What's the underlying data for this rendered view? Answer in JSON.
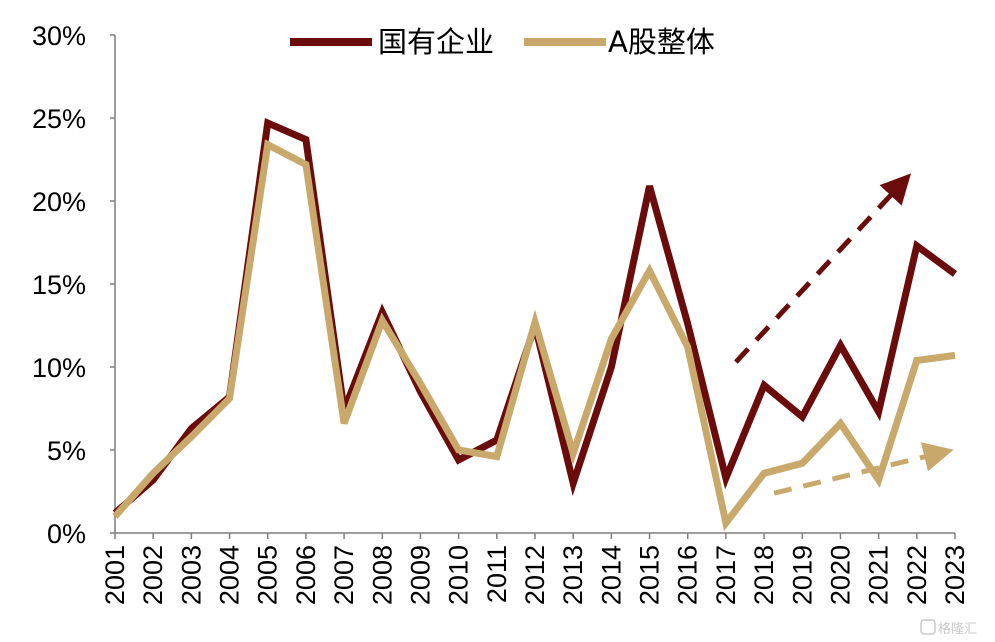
{
  "chart_data": {
    "type": "line",
    "x": [
      "2001",
      "2002",
      "2003",
      "2004",
      "2005",
      "2006",
      "2007",
      "2008",
      "2009",
      "2010",
      "2011",
      "2012",
      "2013",
      "2014",
      "2015",
      "2016",
      "2017",
      "2018",
      "2019",
      "2020",
      "2021",
      "2022",
      "2023"
    ],
    "series": [
      {
        "name": "国有企业",
        "color": "#6b0c0c",
        "values": [
          1.2,
          3.2,
          6.3,
          8.2,
          24.7,
          23.7,
          7.4,
          13.3,
          8.5,
          4.4,
          5.6,
          12.5,
          3.0,
          10.0,
          20.9,
          12.6,
          3.3,
          8.9,
          7.0,
          11.3,
          7.3,
          17.3,
          15.6
        ]
      },
      {
        "name": "A股整体",
        "color": "#c8a96b",
        "values": [
          1.0,
          3.6,
          5.8,
          8.1,
          23.4,
          22.2,
          6.6,
          12.8,
          9.0,
          5.0,
          4.6,
          12.7,
          4.8,
          11.7,
          15.8,
          11.2,
          0.6,
          3.6,
          4.2,
          6.6,
          3.2,
          10.4,
          10.7
        ]
      }
    ],
    "yticks": [
      "0%",
      "5%",
      "10%",
      "15%",
      "20%",
      "25%",
      "30%"
    ],
    "ylim": [
      0,
      30
    ],
    "legend_position": "top",
    "grid": false,
    "annotations": [
      {
        "type": "dashed-arrow",
        "color": "#6b0c0c",
        "from": [
          "2017",
          10.3
        ],
        "to": [
          "2022",
          21.0
        ]
      },
      {
        "type": "dashed-arrow",
        "color": "#c8a96b",
        "from": [
          "2018",
          2.4
        ],
        "to": [
          "2023",
          4.8
        ]
      }
    ]
  },
  "watermark": {
    "text": "格隆汇"
  }
}
